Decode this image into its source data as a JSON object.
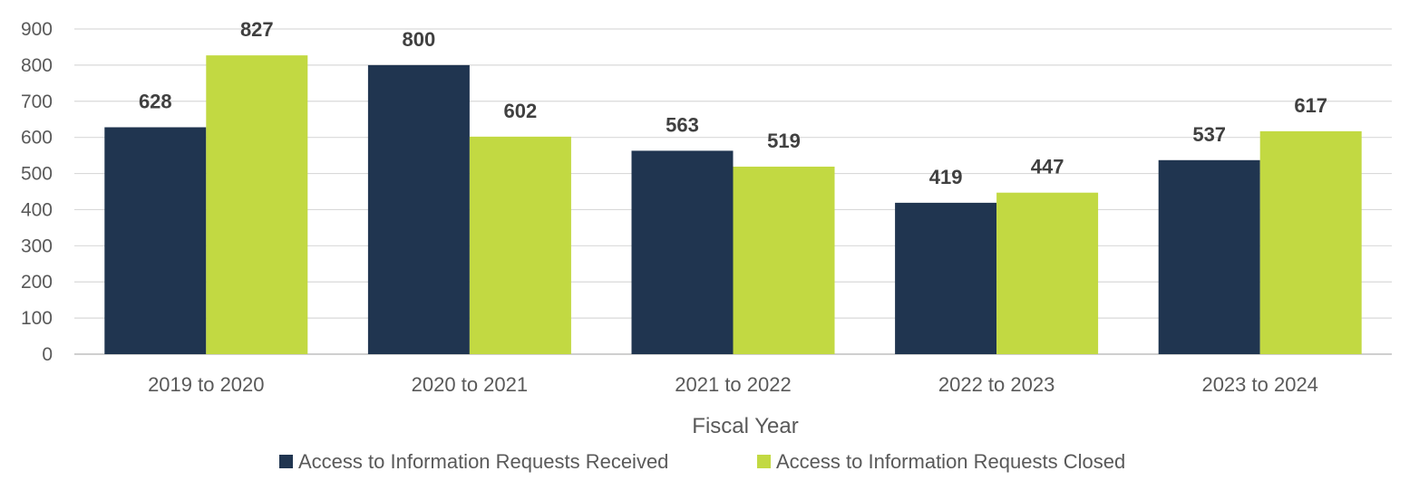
{
  "chart_data": {
    "type": "bar",
    "categories": [
      "2019 to 2020",
      "2020 to 2021",
      "2021 to 2022",
      "2022 to 2023",
      "2023 to 2024"
    ],
    "series": [
      {
        "name": "Access to Information Requests Received",
        "values": [
          628,
          800,
          563,
          419,
          537
        ],
        "color": "#203550"
      },
      {
        "name": "Access to Information Requests Closed",
        "values": [
          827,
          602,
          519,
          447,
          617
        ],
        "color": "#c2d942"
      }
    ],
    "xlabel": "Fiscal Year",
    "ylabel": "",
    "ylim": [
      0,
      900
    ],
    "yticks": [
      0,
      100,
      200,
      300,
      400,
      500,
      600,
      700,
      800,
      900
    ],
    "grid": true,
    "gridColor": "#d9d9d9",
    "legend": "bottom",
    "dataLabels": true
  }
}
